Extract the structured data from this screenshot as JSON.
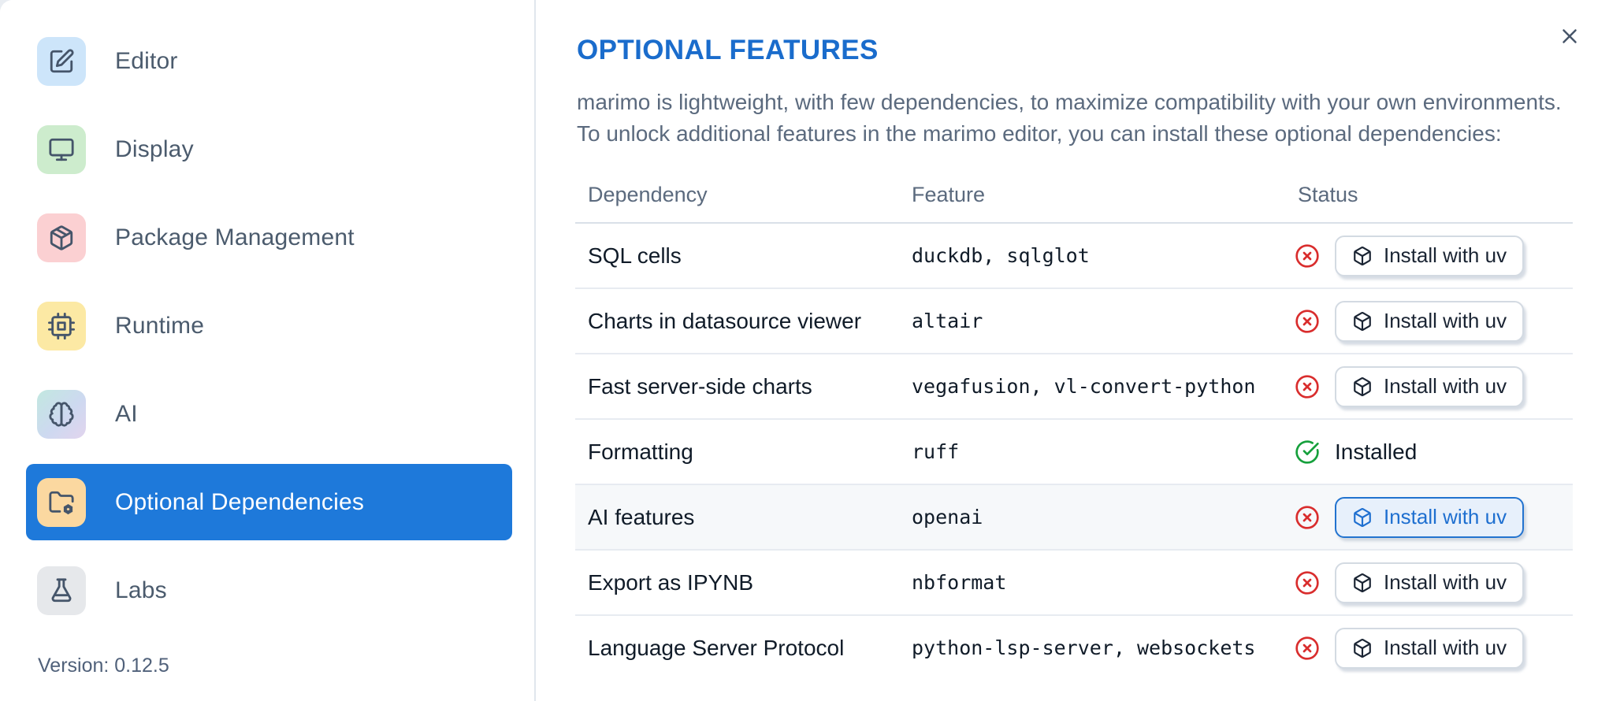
{
  "dialog": {
    "close_icon": "close-icon"
  },
  "sidebar": {
    "selected_color": "#1e79da",
    "items": [
      {
        "label": "Editor",
        "icon": "edit-icon",
        "tile_bg": "#cde5fa",
        "selected": false
      },
      {
        "label": "Display",
        "icon": "monitor-icon",
        "tile_bg": "#cdeccd",
        "selected": false
      },
      {
        "label": "Package Management",
        "icon": "package-icon",
        "tile_bg": "#fbd0d2",
        "selected": false
      },
      {
        "label": "Runtime",
        "icon": "cpu-icon",
        "tile_bg": "#fce9a4",
        "selected": false
      },
      {
        "label": "AI",
        "icon": "brain-icon",
        "tile_bg": "linear-gradient(135deg,#c2e8e0 0%,#cdd9f0 55%,#e2d4ee 100%)",
        "selected": false
      },
      {
        "label": "Optional Dependencies",
        "icon": "folder-cog-icon",
        "tile_bg": "#fbd8a0",
        "selected": true
      },
      {
        "label": "Labs",
        "icon": "flask-icon",
        "tile_bg": "#e6e8eb",
        "selected": false
      }
    ],
    "version_label": "Version: 0.12.5"
  },
  "content": {
    "title": "OPTIONAL FEATURES",
    "title_color": "#1a6ccc",
    "description_line1": "marimo is lightweight, with few dependencies, to maximize compatibility with your own environments.",
    "description_line2": "To unlock additional features in the marimo editor, you can install these optional dependencies:",
    "table": {
      "headers": [
        "Dependency",
        "Feature",
        "Status"
      ],
      "installed_label": "Installed",
      "install_button_label": "Install with uv",
      "not_installed_color": "#d92d2d",
      "installed_color": "#16a03c",
      "highlight_color": "#1e6fd0",
      "rows": [
        {
          "dependency": "SQL cells",
          "feature": "duckdb, sqlglot",
          "installed": false,
          "highlighted": false
        },
        {
          "dependency": "Charts in datasource viewer",
          "feature": "altair",
          "installed": false,
          "highlighted": false
        },
        {
          "dependency": "Fast server-side charts",
          "feature": "vegafusion, vl-convert-python",
          "installed": false,
          "highlighted": false
        },
        {
          "dependency": "Formatting",
          "feature": "ruff",
          "installed": true,
          "highlighted": false
        },
        {
          "dependency": "AI features",
          "feature": "openai",
          "installed": false,
          "highlighted": true
        },
        {
          "dependency": "Export as IPYNB",
          "feature": "nbformat",
          "installed": false,
          "highlighted": false
        },
        {
          "dependency": "Language Server Protocol",
          "feature": "python-lsp-server, websockets",
          "installed": false,
          "highlighted": false
        }
      ]
    }
  }
}
